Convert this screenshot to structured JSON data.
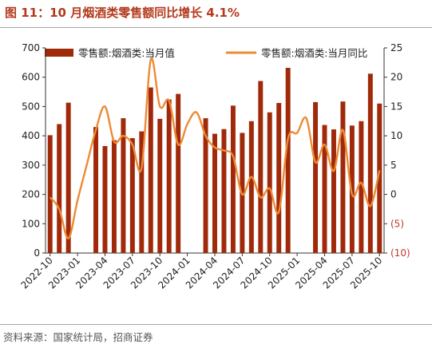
{
  "header": {
    "title": "图 11：10 月烟酒类零售额同比增长 4.1%",
    "source": "资料来源：国家统计局，招商证券"
  },
  "colors": {
    "bar": "#a0290a",
    "line": "#ee8a34",
    "title": "#b33a1d",
    "negative_tick": "#c0392b"
  },
  "chart_data": {
    "type": "bar",
    "title": "图 11：10 月烟酒类零售额同比增长 4.1%",
    "legend": {
      "placement": "top",
      "entries": [
        "零售额:烟酒类:当月值",
        "零售额:烟酒类:当月同比"
      ]
    },
    "months": [
      "2022-10",
      "2022-11",
      "2022-12",
      "2023-01",
      "2023-02",
      "2023-03",
      "2023-04",
      "2023-05",
      "2023-06",
      "2023-07",
      "2023-08",
      "2023-09",
      "2023-10",
      "2023-11",
      "2023-12",
      "2024-01",
      "2024-02",
      "2024-03",
      "2024-04",
      "2024-05",
      "2024-06",
      "2024-07",
      "2024-08",
      "2024-09",
      "2024-10",
      "2024-11",
      "2024-12",
      "2025-01",
      "2025-02",
      "2025-03",
      "2025-04",
      "2025-05",
      "2025-06",
      "2025-07",
      "2025-08",
      "2025-09",
      "2025-10"
    ],
    "x_tick_labels": [
      "2022-10",
      "2023-01",
      "2023-04",
      "2023-07",
      "2023-10",
      "2024-01",
      "2024-04",
      "2024-07",
      "2024-10",
      "2025-01",
      "2025-04",
      "2025-07",
      "2025-10"
    ],
    "y_left": {
      "ylim": [
        0,
        700
      ],
      "ticks": [
        "0",
        "100",
        "200",
        "300",
        "400",
        "500",
        "600",
        "700"
      ]
    },
    "y_right": {
      "ylim": [
        -10,
        25
      ],
      "ticks": [
        "(10)",
        "(5)",
        "0",
        "5",
        "10",
        "15",
        "20",
        "25"
      ]
    },
    "series": [
      {
        "name": "零售额:烟酒类:当月值",
        "type": "bar",
        "axis": "left",
        "values": [
          402,
          440,
          513,
          null,
          null,
          430,
          365,
          385,
          460,
          392,
          415,
          565,
          458,
          524,
          543,
          null,
          null,
          460,
          407,
          423,
          503,
          410,
          450,
          587,
          480,
          512,
          632,
          null,
          null,
          515,
          437,
          422,
          517,
          435,
          450,
          612,
          510
        ]
      },
      {
        "name": "零售额:烟酒类:当月同比",
        "type": "line",
        "axis": "right",
        "values": [
          -0.5,
          -2.5,
          -7.5,
          -1.0,
          5.0,
          11.0,
          15.0,
          9.0,
          10.0,
          8.5,
          4.5,
          23.0,
          15.0,
          16.0,
          8.5,
          12.0,
          14.0,
          10.0,
          8.0,
          7.5,
          6.5,
          0.0,
          3.0,
          -0.5,
          1.0,
          -3.0,
          9.5,
          10.5,
          13.0,
          5.5,
          8.5,
          4.0,
          11.0,
          0.0,
          2.0,
          -2.0,
          4.1
        ]
      }
    ]
  }
}
